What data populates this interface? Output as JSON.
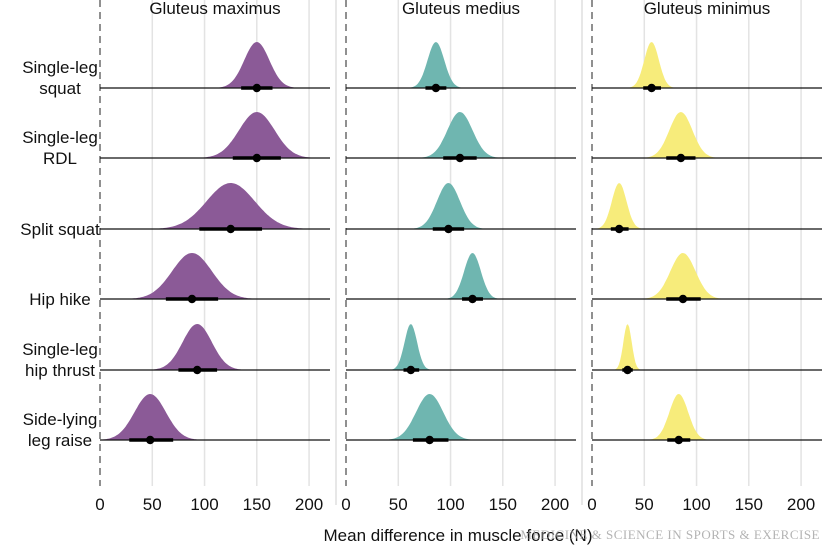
{
  "chart_data": {
    "type": "ridgeline",
    "xlabel": "Mean difference in muscle force (N)",
    "xlim": [
      0,
      220
    ],
    "xticks": [
      0,
      50,
      100,
      150,
      200
    ],
    "grid": true,
    "panels": [
      {
        "title": "Gluteus maximus",
        "color": "#8b5a97"
      },
      {
        "title": "Gluteus medius",
        "color": "#6fb6b0"
      },
      {
        "title": "Gluteus minimus",
        "color": "#f7ec7b"
      }
    ],
    "exercises": [
      {
        "label": [
          "Single-leg",
          "squat"
        ],
        "values": [
          {
            "mean": 150,
            "ci": [
              135,
              165
            ],
            "sd": 12
          },
          {
            "mean": 86,
            "ci": [
              76,
              96
            ],
            "sd": 8
          },
          {
            "mean": 57,
            "ci": [
              49,
              66
            ],
            "sd": 7
          }
        ]
      },
      {
        "label": [
          "Single-leg",
          "RDL"
        ],
        "values": [
          {
            "mean": 150,
            "ci": [
              127,
              173
            ],
            "sd": 17
          },
          {
            "mean": 109,
            "ci": [
              93,
              125
            ],
            "sd": 12
          },
          {
            "mean": 85,
            "ci": [
              71,
              99
            ],
            "sd": 11
          }
        ]
      },
      {
        "label": [
          "Split squat"
        ],
        "values": [
          {
            "mean": 125,
            "ci": [
              95,
              155
            ],
            "sd": 23
          },
          {
            "mean": 98,
            "ci": [
              83,
              113
            ],
            "sd": 11
          },
          {
            "mean": 26,
            "ci": [
              18,
              35
            ],
            "sd": 7
          }
        ]
      },
      {
        "label": [
          "Hip hike"
        ],
        "values": [
          {
            "mean": 88,
            "ci": [
              63,
              113
            ],
            "sd": 19
          },
          {
            "mean": 121,
            "ci": [
              111,
              131
            ],
            "sd": 8
          },
          {
            "mean": 87,
            "ci": [
              71,
              104
            ],
            "sd": 12
          }
        ]
      },
      {
        "label": [
          "Single-leg",
          "hip thrust"
        ],
        "values": [
          {
            "mean": 93,
            "ci": [
              75,
              112
            ],
            "sd": 14
          },
          {
            "mean": 62,
            "ci": [
              55,
              70
            ],
            "sd": 6
          },
          {
            "mean": 34,
            "ci": [
              29,
              39
            ],
            "sd": 4
          }
        ]
      },
      {
        "label": [
          "Side-lying",
          "leg raise"
        ],
        "values": [
          {
            "mean": 48,
            "ci": [
              28,
              70
            ],
            "sd": 15
          },
          {
            "mean": 80,
            "ci": [
              64,
              98
            ],
            "sd": 13
          },
          {
            "mean": 83,
            "ci": [
              72,
              94
            ],
            "sd": 9
          }
        ]
      }
    ]
  },
  "watermark": "MEDICINE & SCIENCE IN SPORTS & EXERCISE"
}
